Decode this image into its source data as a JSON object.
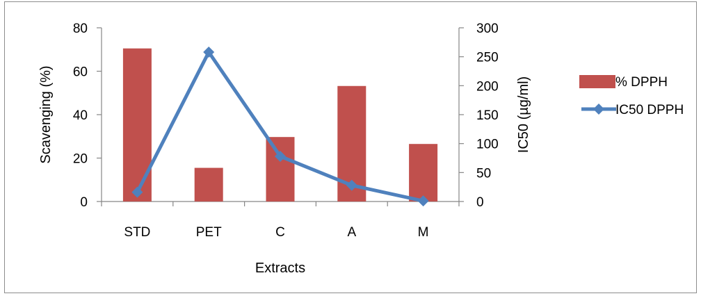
{
  "chart_data": {
    "type": "bar",
    "categories": [
      "STD",
      "PET",
      "C",
      "A",
      "M"
    ],
    "series": [
      {
        "name": "% DPPH",
        "type": "bar",
        "axis": "left",
        "values": [
          70.5,
          15.5,
          29.7,
          53.2,
          26.5
        ],
        "color": "#c0504d"
      },
      {
        "name": "IC50 DPPH",
        "type": "line",
        "axis": "right",
        "values": [
          16,
          258,
          78,
          28,
          1
        ],
        "color": "#4f81bd",
        "marker": "diamond"
      }
    ],
    "xlabel": "Extracts",
    "ylabel": "Scavenging (%)",
    "y2label": "IC50 (µg/ml)",
    "ylim": [
      0,
      80
    ],
    "y2lim": [
      0,
      300
    ],
    "yticks": [
      0,
      20,
      40,
      60,
      80
    ],
    "y2ticks": [
      0,
      50,
      100,
      150,
      200,
      250,
      300
    ],
    "grid": false,
    "legend": "right"
  }
}
